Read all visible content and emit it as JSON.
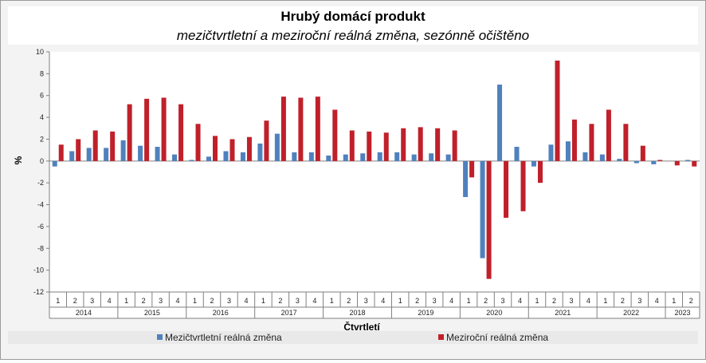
{
  "chart_data": {
    "type": "bar",
    "title": "Hrubý domácí produkt",
    "subtitle": "mezičtvrtletní a meziroční reálná změna, sezónně očištěno",
    "ylabel": "%",
    "xlabel": "Čtvrtletí",
    "ylim": [
      -12,
      10
    ],
    "yticks": [
      10,
      8,
      6,
      4,
      2,
      0,
      -2,
      -4,
      -6,
      -8,
      -10,
      -12
    ],
    "grid": false,
    "legend_position": "bottom",
    "years": [
      "2014",
      "2015",
      "2016",
      "2017",
      "2018",
      "2019",
      "2020",
      "2021",
      "2022",
      "2023"
    ],
    "categories": [
      "1",
      "2",
      "3",
      "4",
      "1",
      "2",
      "3",
      "4",
      "1",
      "2",
      "3",
      "4",
      "1",
      "2",
      "3",
      "4",
      "1",
      "2",
      "3",
      "4",
      "1",
      "2",
      "3",
      "4",
      "1",
      "2",
      "3",
      "4",
      "1",
      "2",
      "3",
      "4",
      "1",
      "2",
      "3",
      "4",
      "1",
      "2"
    ],
    "series": [
      {
        "name": "Mezičtvrtletní reálná změna",
        "color": "#4f81bd",
        "values": [
          -0.5,
          0.9,
          1.2,
          1.2,
          1.9,
          1.4,
          1.3,
          0.6,
          0.1,
          0.4,
          0.9,
          0.8,
          1.6,
          2.5,
          0.8,
          0.8,
          0.5,
          0.6,
          0.7,
          0.8,
          0.8,
          0.6,
          0.7,
          0.6,
          -3.3,
          -8.9,
          7.0,
          1.3,
          -0.5,
          1.5,
          1.8,
          0.8,
          0.6,
          0.2,
          -0.2,
          -0.3,
          0.0,
          0.1
        ]
      },
      {
        "name": "Meziroční reálná změna",
        "color": "#c0202a",
        "values": [
          1.5,
          2.0,
          2.8,
          2.7,
          5.2,
          5.7,
          5.8,
          5.2,
          3.4,
          2.3,
          2.0,
          2.2,
          3.7,
          5.9,
          5.8,
          5.9,
          4.7,
          2.8,
          2.7,
          2.6,
          3.0,
          3.1,
          3.0,
          2.8,
          -1.5,
          -10.8,
          -5.2,
          -4.6,
          -2.0,
          9.2,
          3.8,
          3.4,
          4.7,
          3.4,
          1.4,
          0.1,
          -0.4,
          -0.5
        ]
      }
    ]
  }
}
